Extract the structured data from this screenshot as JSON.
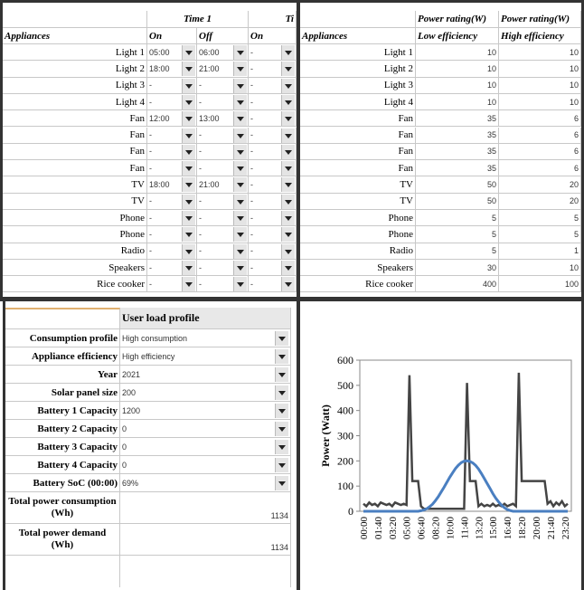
{
  "schedule_table": {
    "header_groups": [
      "Time 1",
      "Ti"
    ],
    "columns": [
      "Appliances",
      "On",
      "Off",
      "On"
    ],
    "rows": [
      [
        "Light 1",
        "05:00",
        "06:00",
        "-"
      ],
      [
        "Light 2",
        "18:00",
        "21:00",
        "-"
      ],
      [
        "Light 3",
        "-",
        "-",
        "-"
      ],
      [
        "Light 4",
        "-",
        "-",
        "-"
      ],
      [
        "Fan",
        "12:00",
        "13:00",
        "-"
      ],
      [
        "Fan",
        "-",
        "-",
        "-"
      ],
      [
        "Fan",
        "-",
        "-",
        "-"
      ],
      [
        "Fan",
        "-",
        "-",
        "-"
      ],
      [
        "TV",
        "18:00",
        "21:00",
        "-"
      ],
      [
        "TV",
        "-",
        "-",
        "-"
      ],
      [
        "Phone",
        "-",
        "-",
        "-"
      ],
      [
        "Phone",
        "-",
        "-",
        "-"
      ],
      [
        "Radio",
        "-",
        "-",
        "-"
      ],
      [
        "Speakers",
        "-",
        "-",
        "-"
      ],
      [
        "Rice cooker",
        "-",
        "-",
        "-"
      ]
    ]
  },
  "power_table": {
    "header_top": [
      "Power rating(W)",
      "Power rating(W)"
    ],
    "columns": [
      "Appliances",
      "Low efficiency",
      "High efficiency"
    ],
    "rows": [
      [
        "Light 1",
        10,
        10
      ],
      [
        "Light 2",
        10,
        10
      ],
      [
        "Light 3",
        10,
        10
      ],
      [
        "Light 4",
        10,
        10
      ],
      [
        "Fan",
        35,
        6
      ],
      [
        "Fan",
        35,
        6
      ],
      [
        "Fan",
        35,
        6
      ],
      [
        "Fan",
        35,
        6
      ],
      [
        "TV",
        50,
        20
      ],
      [
        "TV",
        50,
        20
      ],
      [
        "Phone",
        5,
        5
      ],
      [
        "Phone",
        5,
        5
      ],
      [
        "Radio",
        5,
        1
      ],
      [
        "Speakers",
        30,
        10
      ],
      [
        "Rice cooker",
        400,
        100
      ]
    ]
  },
  "profile_form": {
    "title": "User load profile",
    "rows": [
      [
        "Consumption profile",
        "High consumption"
      ],
      [
        "Appliance efficiency",
        "High efficiency"
      ],
      [
        "Year",
        2021
      ],
      [
        "Solar panel size",
        200
      ],
      [
        "Battery 1 Capacity",
        1200
      ],
      [
        "Battery 2 Capacity",
        0
      ],
      [
        "Battery 3 Capacity",
        0
      ],
      [
        "Battery 4 Capacity",
        0
      ],
      [
        "Battery SoC (00:00)",
        "69%"
      ]
    ],
    "totals": [
      [
        "Total power consumption (Wh)",
        1134
      ],
      [
        "Total power demand (Wh)",
        1134
      ]
    ]
  },
  "chart_data": {
    "type": "line",
    "y_label": "Power (Watt)",
    "categories": [
      "00:00",
      null,
      null,
      null,
      null,
      "01:40",
      null,
      null,
      null,
      null,
      "03:20",
      null,
      null,
      null,
      null,
      "05:00",
      null,
      null,
      null,
      null,
      "06:40",
      null,
      null,
      null,
      null,
      "08:20",
      null,
      null,
      null,
      null,
      "10:00",
      null,
      null,
      null,
      null,
      "11:40",
      null,
      null,
      null,
      null,
      "13:20",
      null,
      null,
      null,
      null,
      "15:00",
      null,
      null,
      null,
      null,
      "16:40",
      null,
      null,
      null,
      null,
      "18:20",
      null,
      null,
      null,
      null,
      "20:00",
      null,
      null,
      null,
      null,
      "21:40",
      null,
      null,
      null,
      null,
      "23:20",
      null
    ],
    "series": [
      {
        "color": "#444444",
        "values": [
          30,
          20,
          35,
          25,
          30,
          20,
          35,
          30,
          25,
          30,
          20,
          35,
          30,
          25,
          30,
          25,
          540,
          120,
          120,
          120,
          20,
          10,
          10,
          10,
          10,
          10,
          10,
          10,
          10,
          10,
          10,
          10,
          10,
          10,
          10,
          10,
          510,
          120,
          120,
          120,
          20,
          30,
          20,
          25,
          20,
          30,
          20,
          25,
          20,
          30,
          20,
          25,
          30,
          20,
          550,
          120,
          120,
          120,
          120,
          120,
          120,
          120,
          120,
          120,
          30,
          40,
          20,
          35,
          25,
          40,
          20,
          30
        ]
      },
      {
        "color": "#4a7fc1",
        "values": [
          0,
          0,
          0,
          0,
          0,
          0,
          0,
          0,
          0,
          0,
          0,
          0,
          0,
          0,
          0,
          0,
          0,
          0,
          0,
          0,
          2,
          5,
          10,
          18,
          28,
          42,
          58,
          76,
          95,
          115,
          135,
          153,
          170,
          183,
          193,
          199,
          200,
          198,
          192,
          182,
          168,
          150,
          130,
          110,
          90,
          70,
          52,
          37,
          24,
          14,
          7,
          3,
          0,
          0,
          0,
          0,
          0,
          0,
          0,
          0,
          0,
          0,
          0,
          0,
          0,
          0,
          0,
          0,
          0,
          0,
          0,
          0
        ]
      }
    ],
    "ylim": [
      0,
      600
    ],
    "yticks": [
      0,
      100,
      200,
      300,
      400,
      500,
      600
    ]
  }
}
